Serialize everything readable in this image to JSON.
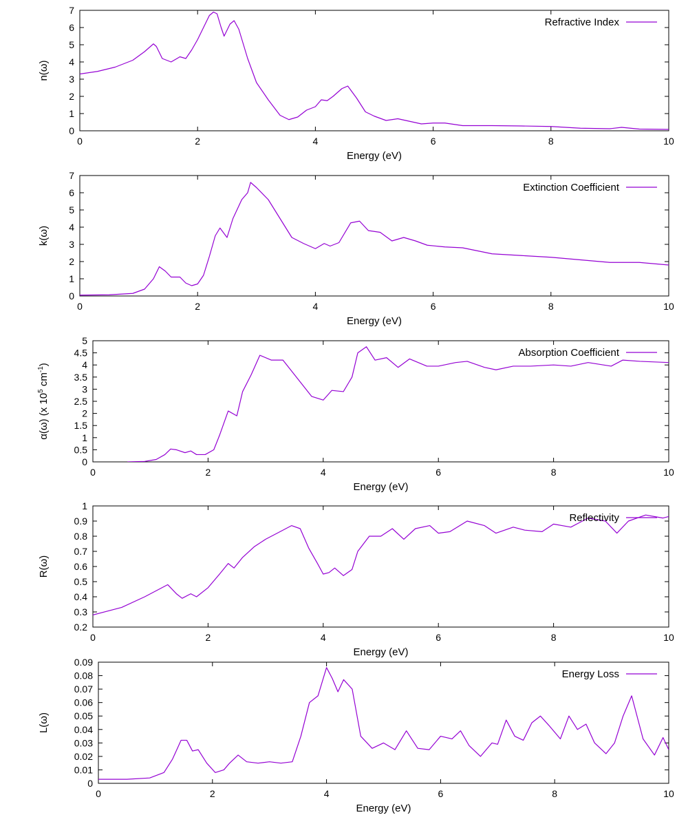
{
  "series_color": "#9400d3",
  "chart_data": [
    {
      "type": "line",
      "xlabel": "Energy (eV)",
      "ylabel": "n(ω)",
      "legend": "Refractive Index",
      "legend_position": "top-right",
      "xlim": [
        0,
        10
      ],
      "ylim": [
        0,
        7
      ],
      "xticks": [
        "0",
        "2",
        "4",
        "6",
        "8",
        "10"
      ],
      "yticks": [
        "0",
        "1",
        "2",
        "3",
        "4",
        "5",
        "6",
        "7"
      ],
      "x": [
        0,
        0.3,
        0.6,
        0.9,
        1.1,
        1.25,
        1.3,
        1.4,
        1.55,
        1.7,
        1.8,
        1.9,
        2.0,
        2.1,
        2.2,
        2.27,
        2.33,
        2.4,
        2.45,
        2.55,
        2.62,
        2.7,
        2.85,
        3.0,
        3.2,
        3.4,
        3.55,
        3.7,
        3.85,
        4.0,
        4.1,
        4.2,
        4.3,
        4.45,
        4.55,
        4.7,
        4.85,
        5.0,
        5.2,
        5.4,
        5.6,
        5.8,
        6.0,
        6.2,
        6.5,
        7.0,
        7.5,
        8.0,
        8.5,
        9.0,
        9.2,
        9.5,
        10.0
      ],
      "y": [
        3.3,
        3.45,
        3.7,
        4.1,
        4.6,
        5.05,
        4.9,
        4.2,
        4.0,
        4.3,
        4.2,
        4.7,
        5.3,
        6.0,
        6.7,
        6.9,
        6.8,
        6.0,
        5.5,
        6.2,
        6.4,
        5.9,
        4.2,
        2.8,
        1.8,
        0.9,
        0.65,
        0.8,
        1.2,
        1.4,
        1.8,
        1.75,
        2.0,
        2.45,
        2.6,
        1.9,
        1.1,
        0.85,
        0.6,
        0.7,
        0.55,
        0.4,
        0.45,
        0.45,
        0.3,
        0.3,
        0.28,
        0.25,
        0.15,
        0.12,
        0.2,
        0.1,
        0.08
      ]
    },
    {
      "type": "line",
      "xlabel": "Energy (eV)",
      "ylabel": "k(ω)",
      "legend": "Extinction Coefficient",
      "legend_position": "top-right",
      "xlim": [
        0,
        10
      ],
      "ylim": [
        0,
        7
      ],
      "xticks": [
        "0",
        "2",
        "4",
        "6",
        "8",
        "10"
      ],
      "yticks": [
        "0",
        "1",
        "2",
        "3",
        "4",
        "5",
        "6",
        "7"
      ],
      "x": [
        0,
        0.5,
        0.9,
        1.1,
        1.25,
        1.35,
        1.45,
        1.55,
        1.7,
        1.8,
        1.9,
        2.0,
        2.1,
        2.2,
        2.3,
        2.38,
        2.5,
        2.6,
        2.75,
        2.85,
        2.9,
        3.0,
        3.2,
        3.4,
        3.6,
        3.8,
        4.0,
        4.15,
        4.25,
        4.4,
        4.6,
        4.75,
        4.9,
        5.1,
        5.3,
        5.5,
        5.7,
        5.9,
        6.2,
        6.5,
        7.0,
        7.5,
        8.0,
        8.5,
        9.0,
        9.5,
        10.0
      ],
      "y": [
        0.05,
        0.07,
        0.15,
        0.4,
        1.0,
        1.7,
        1.45,
        1.1,
        1.1,
        0.75,
        0.6,
        0.7,
        1.2,
        2.3,
        3.5,
        3.95,
        3.4,
        4.5,
        5.6,
        6.0,
        6.6,
        6.3,
        5.6,
        4.5,
        3.4,
        3.05,
        2.75,
        3.05,
        2.9,
        3.1,
        4.25,
        4.35,
        3.8,
        3.7,
        3.2,
        3.4,
        3.2,
        2.95,
        2.85,
        2.8,
        2.45,
        2.35,
        2.25,
        2.1,
        1.95,
        1.95,
        1.8
      ]
    },
    {
      "type": "line",
      "xlabel": "Energy (eV)",
      "ylabel": "α(ω) (x 10",
      "ylabel_exp": "5",
      "ylabel_mid": " cm",
      "ylabel_exp2": "-1",
      "ylabel_end": ")",
      "legend": "Absorption Coefficient",
      "legend_position": "top-right",
      "xlim": [
        0,
        10
      ],
      "ylim": [
        0,
        5
      ],
      "xticks": [
        "0",
        "2",
        "4",
        "6",
        "8",
        "10"
      ],
      "yticks": [
        "0",
        "0.5",
        "1",
        "1.5",
        "2",
        "2.5",
        "3",
        "3.5",
        "4",
        "4.5",
        "5"
      ],
      "x": [
        0.6,
        0.9,
        1.1,
        1.25,
        1.35,
        1.45,
        1.6,
        1.7,
        1.8,
        1.95,
        2.1,
        2.2,
        2.35,
        2.5,
        2.6,
        2.75,
        2.9,
        3.1,
        3.3,
        3.5,
        3.8,
        4.0,
        4.15,
        4.35,
        4.5,
        4.6,
        4.75,
        4.9,
        5.1,
        5.3,
        5.5,
        5.8,
        6.0,
        6.3,
        6.5,
        6.8,
        7.0,
        7.3,
        7.6,
        8.0,
        8.3,
        8.6,
        9.0,
        9.2,
        9.5,
        10.0
      ],
      "y": [
        0.0,
        0.02,
        0.1,
        0.3,
        0.53,
        0.5,
        0.38,
        0.45,
        0.3,
        0.3,
        0.5,
        1.1,
        2.1,
        1.9,
        2.9,
        3.6,
        4.4,
        4.2,
        4.2,
        3.6,
        2.7,
        2.55,
        2.95,
        2.9,
        3.5,
        4.5,
        4.75,
        4.2,
        4.3,
        3.9,
        4.25,
        3.95,
        3.95,
        4.1,
        4.15,
        3.9,
        3.8,
        3.95,
        3.95,
        4.0,
        3.95,
        4.1,
        3.95,
        4.2,
        4.15,
        4.1
      ]
    },
    {
      "type": "line",
      "xlabel": "Energy (eV)",
      "ylabel": "R(ω)",
      "legend": "Reflectivity",
      "legend_position": "top-right",
      "xlim": [
        0,
        10
      ],
      "ylim": [
        0.2,
        1
      ],
      "xticks": [
        "0",
        "2",
        "4",
        "6",
        "8",
        "10"
      ],
      "yticks": [
        "0.2",
        "0.3",
        "0.4",
        "0.5",
        "0.6",
        "0.7",
        "0.8",
        "0.9",
        "1"
      ],
      "x": [
        0,
        0.5,
        0.9,
        1.15,
        1.3,
        1.45,
        1.55,
        1.7,
        1.8,
        2.0,
        2.2,
        2.35,
        2.45,
        2.6,
        2.8,
        3.0,
        3.2,
        3.45,
        3.6,
        3.75,
        3.9,
        4.0,
        4.1,
        4.2,
        4.35,
        4.5,
        4.6,
        4.8,
        5.0,
        5.2,
        5.4,
        5.6,
        5.85,
        6.0,
        6.2,
        6.5,
        6.8,
        7.0,
        7.3,
        7.5,
        7.8,
        8.0,
        8.3,
        8.6,
        8.9,
        9.1,
        9.3,
        9.6,
        9.9,
        10.0
      ],
      "y": [
        0.28,
        0.33,
        0.4,
        0.45,
        0.48,
        0.42,
        0.39,
        0.42,
        0.4,
        0.46,
        0.55,
        0.62,
        0.59,
        0.66,
        0.73,
        0.78,
        0.82,
        0.87,
        0.85,
        0.72,
        0.62,
        0.55,
        0.56,
        0.59,
        0.54,
        0.58,
        0.7,
        0.8,
        0.8,
        0.85,
        0.78,
        0.85,
        0.87,
        0.82,
        0.83,
        0.9,
        0.87,
        0.82,
        0.86,
        0.84,
        0.83,
        0.88,
        0.86,
        0.92,
        0.9,
        0.82,
        0.9,
        0.94,
        0.92,
        0.93
      ]
    },
    {
      "type": "line",
      "xlabel": "Energy (eV)",
      "ylabel": "L(ω)",
      "legend": "Energy Loss",
      "legend_position": "top-right",
      "xlim": [
        0,
        10
      ],
      "ylim": [
        0,
        0.09
      ],
      "xticks": [
        "0",
        "2",
        "4",
        "6",
        "8",
        "10"
      ],
      "yticks": [
        "0",
        "0.01",
        "0.02",
        "0.03",
        "0.04",
        "0.05",
        "0.06",
        "0.07",
        "0.08",
        "0.09"
      ],
      "x": [
        0,
        0.5,
        0.9,
        1.15,
        1.3,
        1.45,
        1.55,
        1.65,
        1.75,
        1.9,
        2.05,
        2.2,
        2.3,
        2.45,
        2.6,
        2.8,
        3.0,
        3.2,
        3.4,
        3.55,
        3.7,
        3.85,
        4.0,
        4.1,
        4.2,
        4.3,
        4.45,
        4.6,
        4.8,
        5.0,
        5.2,
        5.4,
        5.6,
        5.8,
        6.0,
        6.2,
        6.35,
        6.5,
        6.7,
        6.9,
        7.0,
        7.15,
        7.3,
        7.45,
        7.6,
        7.75,
        7.9,
        8.1,
        8.25,
        8.4,
        8.55,
        8.7,
        8.9,
        9.05,
        9.2,
        9.35,
        9.55,
        9.75,
        9.9,
        10.0
      ],
      "y": [
        0.003,
        0.003,
        0.004,
        0.008,
        0.018,
        0.032,
        0.032,
        0.024,
        0.025,
        0.015,
        0.008,
        0.01,
        0.015,
        0.021,
        0.016,
        0.015,
        0.016,
        0.015,
        0.016,
        0.035,
        0.06,
        0.065,
        0.086,
        0.078,
        0.068,
        0.077,
        0.07,
        0.035,
        0.026,
        0.03,
        0.025,
        0.039,
        0.026,
        0.025,
        0.035,
        0.033,
        0.039,
        0.028,
        0.02,
        0.03,
        0.029,
        0.047,
        0.035,
        0.032,
        0.045,
        0.05,
        0.043,
        0.033,
        0.05,
        0.04,
        0.044,
        0.03,
        0.022,
        0.03,
        0.05,
        0.065,
        0.033,
        0.021,
        0.034,
        0.025
      ]
    }
  ]
}
